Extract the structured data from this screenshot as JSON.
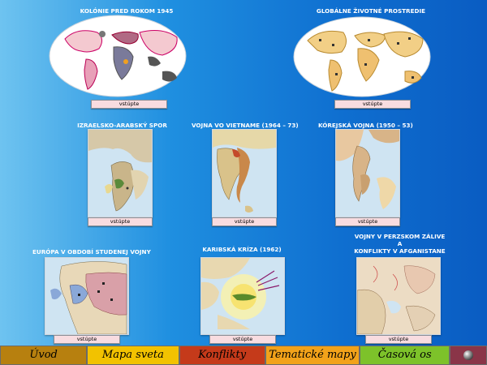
{
  "sections": {
    "colonies": {
      "title": "KOLÓNIE PRED ROKOM 1945",
      "enter": "vstúpte"
    },
    "environment": {
      "title": "GLOBÁLNE ŽIVOTNÉ PROSTREDIE",
      "enter": "vstúpte"
    },
    "israel": {
      "title": "IZRAELSKO-ARABSKÝ SPOR",
      "enter": "vstúpte"
    },
    "vietnam": {
      "title": "VOJNA VO VIETNAME (1964  – 73)",
      "enter": "vstúpte"
    },
    "korea": {
      "title": "KÓREJSKÁ VOJNA (1950  – 53)",
      "enter": "vstúpte"
    },
    "coldwar": {
      "title": "EURÓPA V OBDOBÍ STUDENEJ VOJNY",
      "enter": "vstúpte"
    },
    "caribbean": {
      "title": "KARIBSKÁ KRÍZA (1962)",
      "enter": "vstúpte"
    },
    "gulf": {
      "title_lines": [
        "VOJNY V PERZSKOM ZÁLIVE",
        "A",
        "KONFLIKTY V AFGANISTANE"
      ],
      "enter": "vstúpte"
    }
  },
  "nav": {
    "uvod": "Úvod",
    "mapa": "Mapa sveta",
    "konflikty": "Konflikty",
    "tematicke": "Tematické mapy",
    "casova": "Časová os"
  },
  "icons": {
    "nav_end": "sphere-icon"
  },
  "colors": {
    "bg_left": "#6ec3f0",
    "bg_right": "#0a5cc2",
    "button_bg": "#f8dce0",
    "nav_uvod": "#b7800f",
    "nav_mapa": "#f2c200",
    "nav_konflikty": "#c53a1a",
    "nav_tematicke": "#f2a21a",
    "nav_casova": "#7dc22a",
    "nav_end": "#8a3548"
  }
}
